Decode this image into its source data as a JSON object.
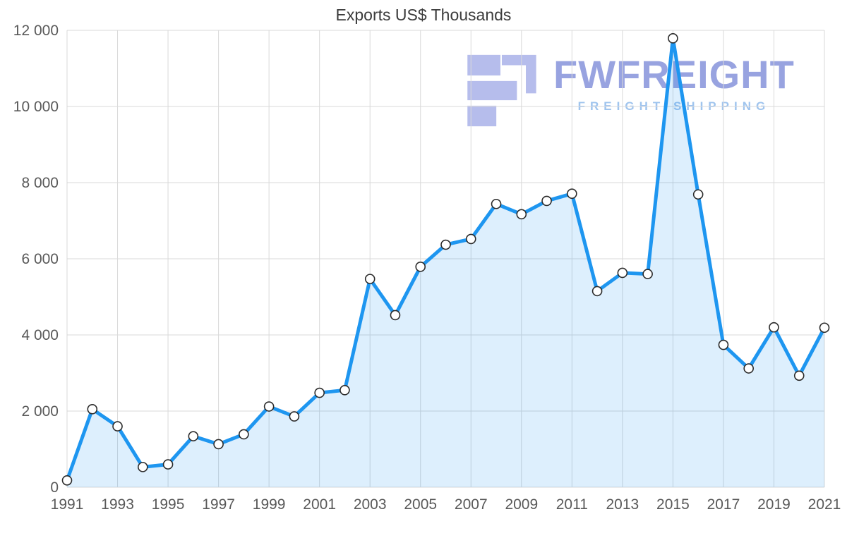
{
  "title": "Exports US$ Thousands",
  "watermark": {
    "brand": "FWFREIGHT",
    "tagline": "FREIGHT SHIPPING",
    "brand_color": "#98a3e0",
    "tagline_color": "#9fc4ee",
    "logo_color": "#b6bdec"
  },
  "chart_data": {
    "type": "area",
    "title": "Exports US$ Thousands",
    "xlabel": "",
    "ylabel": "",
    "x": [
      1991,
      1992,
      1993,
      1994,
      1995,
      1996,
      1997,
      1998,
      1999,
      2000,
      2001,
      2002,
      2003,
      2004,
      2005,
      2006,
      2007,
      2008,
      2009,
      2010,
      2011,
      2012,
      2013,
      2014,
      2015,
      2016,
      2017,
      2018,
      2019,
      2020,
      2021
    ],
    "values": [
      180,
      2050,
      1600,
      530,
      600,
      1340,
      1130,
      1390,
      2120,
      1860,
      2480,
      2550,
      5470,
      4520,
      5790,
      6370,
      6520,
      7440,
      7170,
      7520,
      7710,
      5150,
      5630,
      5600,
      11790,
      7690,
      3740,
      3120,
      4200,
      2930,
      4190
    ],
    "ylim": [
      0,
      12000
    ],
    "y_ticks": [
      0,
      2000,
      4000,
      6000,
      8000,
      10000,
      12000
    ],
    "y_tick_labels": [
      "0",
      "2 000",
      "4 000",
      "6 000",
      "8 000",
      "10 000",
      "12 000"
    ],
    "x_tick_labels": [
      "1991",
      "1993",
      "1995",
      "1997",
      "1999",
      "2001",
      "2003",
      "2005",
      "2007",
      "2009",
      "2011",
      "2013",
      "2015",
      "2017",
      "2019",
      "2021"
    ],
    "grid": true,
    "legend": "none",
    "line_color": "#1e96f0",
    "area_color": "rgba(30,150,240,0.15)",
    "marker_fill": "#ffffff",
    "marker_stroke": "#2b2b2b"
  }
}
